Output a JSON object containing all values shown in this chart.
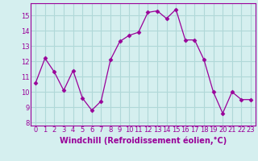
{
  "x": [
    0,
    1,
    2,
    3,
    4,
    5,
    6,
    7,
    8,
    9,
    10,
    11,
    12,
    13,
    14,
    15,
    16,
    17,
    18,
    19,
    20,
    21,
    22,
    23
  ],
  "y": [
    10.6,
    12.2,
    11.3,
    10.1,
    11.4,
    9.6,
    8.8,
    9.4,
    12.1,
    13.3,
    13.7,
    13.9,
    15.2,
    15.3,
    14.8,
    15.4,
    13.4,
    13.4,
    12.1,
    10.0,
    8.6,
    10.0,
    9.5,
    9.5
  ],
  "line_color": "#990099",
  "marker": "D",
  "marker_size": 2.5,
  "bg_color": "#d5efef",
  "grid_color": "#b0d8d8",
  "xlim": [
    -0.5,
    23.5
  ],
  "ylim": [
    7.8,
    15.8
  ],
  "yticks": [
    8,
    9,
    10,
    11,
    12,
    13,
    14,
    15
  ],
  "xticks": [
    0,
    1,
    2,
    3,
    4,
    5,
    6,
    7,
    8,
    9,
    10,
    11,
    12,
    13,
    14,
    15,
    16,
    17,
    18,
    19,
    20,
    21,
    22,
    23
  ],
  "xlabel": "Windchill (Refroidissement éolien,°C)",
  "xlabel_fontsize": 7,
  "tick_fontsize": 6,
  "tick_color": "#990099",
  "label_color": "#990099",
  "spine_color": "#990099",
  "axis_bg": "#cce8e8"
}
